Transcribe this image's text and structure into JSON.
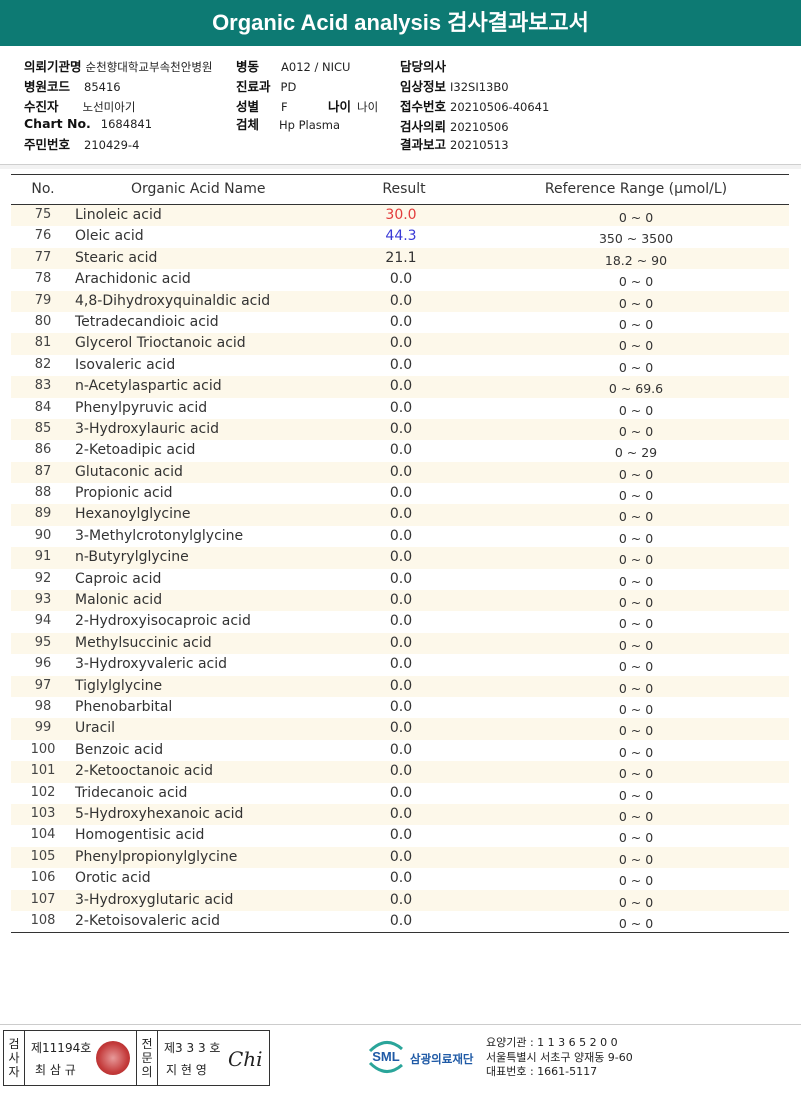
{
  "title": "Organic Acid analysis 검사결과보고서",
  "patient": {
    "institution_label": "의뢰기관명",
    "institution": "순천향대학교부속천안병원",
    "ward_label": "병동",
    "ward": "A012 / NICU",
    "doctor_label": "담당의사",
    "doctor": "",
    "hospital_code_label": "병원코드",
    "hospital_code": "85416",
    "department_label": "진료과",
    "department": "PD",
    "clinical_label": "임상정보",
    "clinical": "I32SI13B0",
    "name_label": "수진자",
    "name": "노선미아기",
    "sex_label": "성별",
    "sex": "F",
    "age_label": "나이",
    "age": "나이",
    "receipt_label": "접수번호",
    "receipt": "20210506-40641",
    "chart_label": "Chart No.",
    "chart": "1684841",
    "specimen_label": "검체",
    "specimen": "Hp Plasma",
    "request_label": "검사의뢰",
    "request": "20210506",
    "resident_label": "주민번호",
    "resident": "210429-4",
    "report_label": "결과보고",
    "report": "20210513"
  },
  "table": {
    "headers": {
      "no": "No.",
      "name": "Organic Acid Name",
      "result": "Result",
      "ref": "Reference Range (μmol/L)"
    },
    "colors": {
      "high": "#e23b3b",
      "low": "#3a3ad6",
      "normal": "#333333"
    },
    "rows": [
      {
        "no": "75",
        "name": "Linoleic acid",
        "result": "30.0",
        "ref": "0 ~ 0",
        "flag": "high"
      },
      {
        "no": "76",
        "name": "Oleic acid",
        "result": "44.3",
        "ref": "350 ~ 3500",
        "flag": "low"
      },
      {
        "no": "77",
        "name": "Stearic acid",
        "result": "21.1",
        "ref": "18.2 ~ 90",
        "flag": "normal"
      },
      {
        "no": "78",
        "name": "Arachidonic acid",
        "result": "0.0",
        "ref": "0 ~ 0",
        "flag": "normal"
      },
      {
        "no": "79",
        "name": "4,8-Dihydroxyquinaldic acid",
        "result": "0.0",
        "ref": "0 ~ 0",
        "flag": "normal"
      },
      {
        "no": "80",
        "name": "Tetradecandioic acid",
        "result": "0.0",
        "ref": "0 ~ 0",
        "flag": "normal"
      },
      {
        "no": "81",
        "name": "Glycerol Trioctanoic acid",
        "result": "0.0",
        "ref": "0 ~ 0",
        "flag": "normal"
      },
      {
        "no": "82",
        "name": "Isovaleric acid",
        "result": "0.0",
        "ref": "0 ~ 0",
        "flag": "normal"
      },
      {
        "no": "83",
        "name": "n-Acetylaspartic acid",
        "result": "0.0",
        "ref": "0 ~ 69.6",
        "flag": "normal"
      },
      {
        "no": "84",
        "name": "Phenylpyruvic acid",
        "result": "0.0",
        "ref": "0 ~ 0",
        "flag": "normal"
      },
      {
        "no": "85",
        "name": "3-Hydroxylauric acid",
        "result": "0.0",
        "ref": "0 ~ 0",
        "flag": "normal"
      },
      {
        "no": "86",
        "name": "2-Ketoadipic acid",
        "result": "0.0",
        "ref": "0 ~ 29",
        "flag": "normal"
      },
      {
        "no": "87",
        "name": "Glutaconic acid",
        "result": "0.0",
        "ref": "0 ~ 0",
        "flag": "normal"
      },
      {
        "no": "88",
        "name": "Propionic acid",
        "result": "0.0",
        "ref": "0 ~ 0",
        "flag": "normal"
      },
      {
        "no": "89",
        "name": "Hexanoylglycine",
        "result": "0.0",
        "ref": "0 ~ 0",
        "flag": "normal"
      },
      {
        "no": "90",
        "name": "3-Methylcrotonylglycine",
        "result": "0.0",
        "ref": "0 ~ 0",
        "flag": "normal"
      },
      {
        "no": "91",
        "name": "n-Butyrylglycine",
        "result": "0.0",
        "ref": "0 ~ 0",
        "flag": "normal"
      },
      {
        "no": "92",
        "name": "Caproic acid",
        "result": "0.0",
        "ref": "0 ~ 0",
        "flag": "normal"
      },
      {
        "no": "93",
        "name": "Malonic acid",
        "result": "0.0",
        "ref": "0 ~ 0",
        "flag": "normal"
      },
      {
        "no": "94",
        "name": "2-Hydroxyisocaproic acid",
        "result": "0.0",
        "ref": "0 ~ 0",
        "flag": "normal"
      },
      {
        "no": "95",
        "name": "Methylsuccinic acid",
        "result": "0.0",
        "ref": "0 ~ 0",
        "flag": "normal"
      },
      {
        "no": "96",
        "name": "3-Hydroxyvaleric acid",
        "result": "0.0",
        "ref": "0 ~ 0",
        "flag": "normal"
      },
      {
        "no": "97",
        "name": "Tiglylglycine",
        "result": "0.0",
        "ref": "0 ~ 0",
        "flag": "normal"
      },
      {
        "no": "98",
        "name": "Phenobarbital",
        "result": "0.0",
        "ref": "0 ~ 0",
        "flag": "normal"
      },
      {
        "no": "99",
        "name": "Uracil",
        "result": "0.0",
        "ref": "0 ~ 0",
        "flag": "normal"
      },
      {
        "no": "100",
        "name": "Benzoic acid",
        "result": "0.0",
        "ref": "0 ~ 0",
        "flag": "normal"
      },
      {
        "no": "101",
        "name": "2-Ketooctanoic acid",
        "result": "0.0",
        "ref": "0 ~ 0",
        "flag": "normal"
      },
      {
        "no": "102",
        "name": "Tridecanoic acid",
        "result": "0.0",
        "ref": "0 ~ 0",
        "flag": "normal"
      },
      {
        "no": "103",
        "name": "5-Hydroxyhexanoic acid",
        "result": "0.0",
        "ref": "0 ~ 0",
        "flag": "normal"
      },
      {
        "no": "104",
        "name": "Homogentisic acid",
        "result": "0.0",
        "ref": "0 ~ 0",
        "flag": "normal"
      },
      {
        "no": "105",
        "name": "Phenylpropionylglycine",
        "result": "0.0",
        "ref": "0 ~ 0",
        "flag": "normal"
      },
      {
        "no": "106",
        "name": "Orotic acid",
        "result": "0.0",
        "ref": "0 ~ 0",
        "flag": "normal"
      },
      {
        "no": "107",
        "name": "3-Hydroxyglutaric acid",
        "result": "0.0",
        "ref": "0 ~ 0",
        "flag": "normal"
      },
      {
        "no": "108",
        "name": "2-Ketoisovaleric acid",
        "result": "0.0",
        "ref": "0 ~ 0",
        "flag": "normal"
      }
    ]
  },
  "footer": {
    "examiner_label": "검사자",
    "examiner_license": "제11194호",
    "examiner_name": "최 삼 규",
    "specialist_label": "전문의",
    "specialist_license": "제3 3 3 호",
    "specialist_name": "지 현 영",
    "signature": "Chi",
    "logo_text": "SML",
    "org_name": "삼광의료재단",
    "org_code": "요양기관 : 1 1 3 6 5 2 0 0",
    "org_address": "서울특별시 서초구 양재동 9-60",
    "org_phone": "대표번호 : 1661-5117"
  }
}
